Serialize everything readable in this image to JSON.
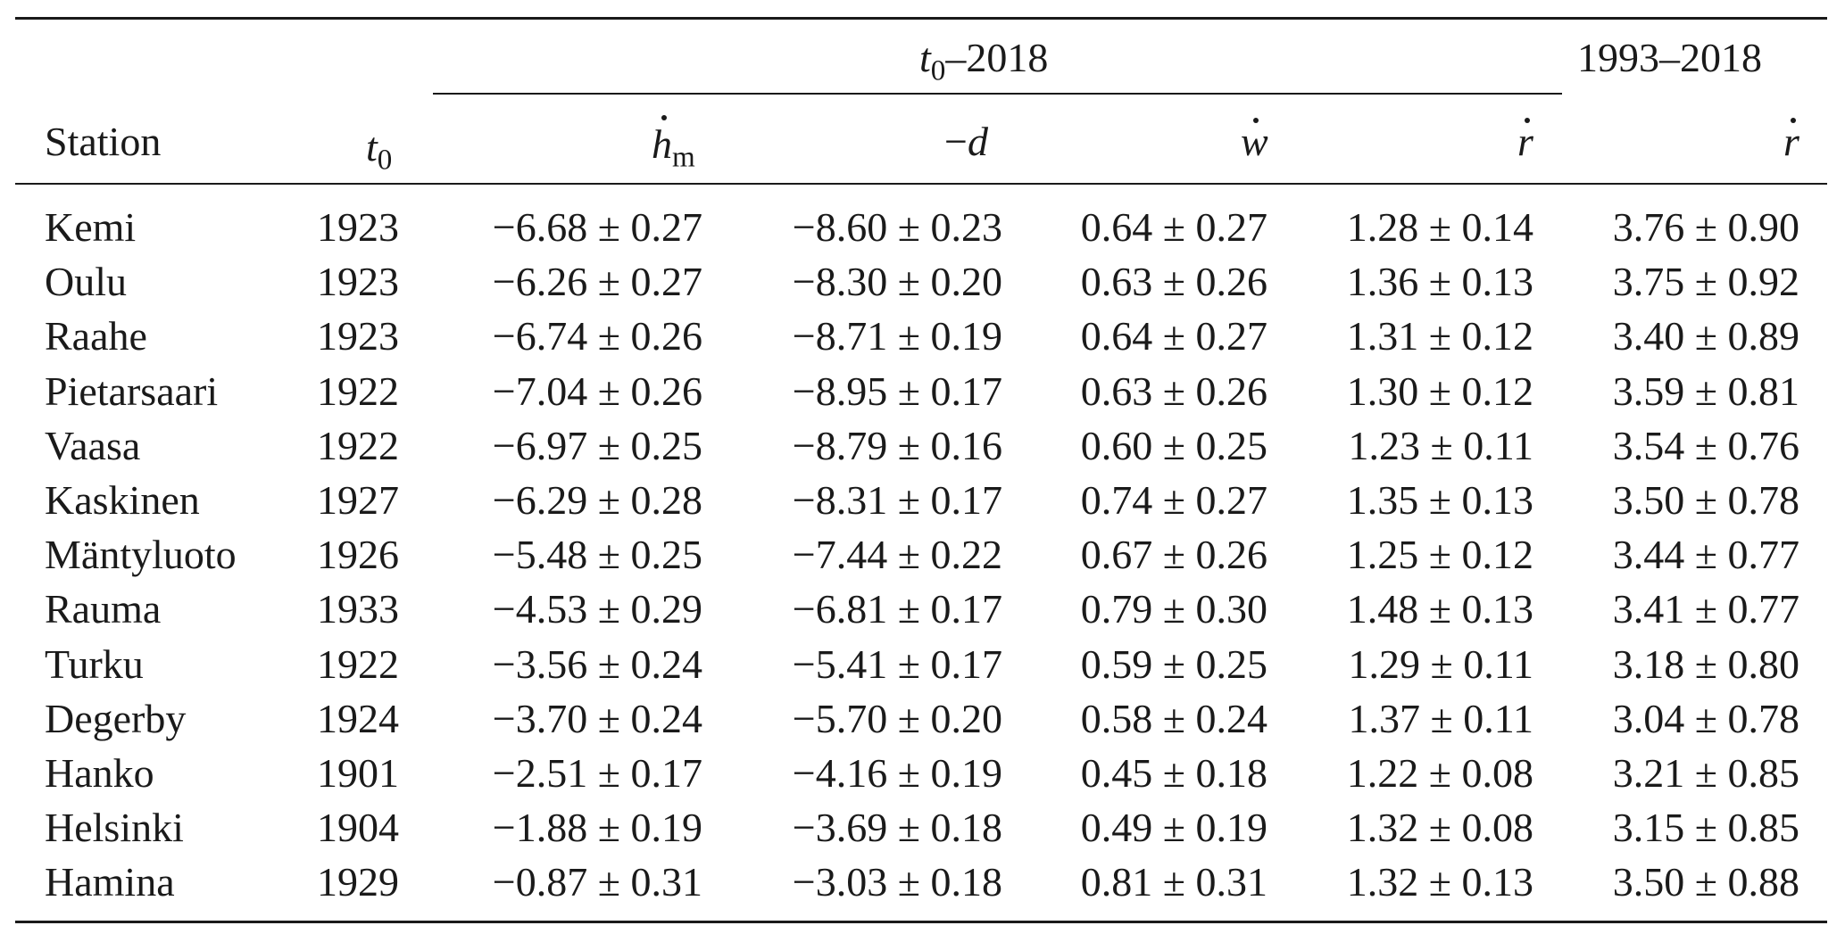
{
  "table": {
    "group_headers": {
      "t0_period": "t0–2018",
      "t0_period_sub_prefix": "t",
      "t0_period_sub": "0",
      "t0_period_suffix": "–2018",
      "recent_period": "1993–2018"
    },
    "column_headers": {
      "station": "Station",
      "t0": "t",
      "t0_sub": "0",
      "hm": "h",
      "hm_sub": "m",
      "d": "−d",
      "d_sign": "−",
      "d_var": "d",
      "w": "w",
      "r": "r",
      "r_recent": "r"
    },
    "rows": [
      {
        "station": "Kemi",
        "t0": "1923",
        "hm": "−6.68 ± 0.27",
        "d": "−8.60 ± 0.23",
        "w": "0.64 ± 0.27",
        "r": "1.28 ± 0.14",
        "r_recent": "3.76 ± 0.90"
      },
      {
        "station": "Oulu",
        "t0": "1923",
        "hm": "−6.26 ± 0.27",
        "d": "−8.30 ± 0.20",
        "w": "0.63 ± 0.26",
        "r": "1.36 ± 0.13",
        "r_recent": "3.75 ± 0.92"
      },
      {
        "station": "Raahe",
        "t0": "1923",
        "hm": "−6.74 ± 0.26",
        "d": "−8.71 ± 0.19",
        "w": "0.64 ± 0.27",
        "r": "1.31 ± 0.12",
        "r_recent": "3.40 ± 0.89"
      },
      {
        "station": "Pietarsaari",
        "t0": "1922",
        "hm": "−7.04 ± 0.26",
        "d": "−8.95 ± 0.17",
        "w": "0.63 ± 0.26",
        "r": "1.30 ± 0.12",
        "r_recent": "3.59 ± 0.81"
      },
      {
        "station": "Vaasa",
        "t0": "1922",
        "hm": "−6.97 ± 0.25",
        "d": "−8.79 ± 0.16",
        "w": "0.60 ± 0.25",
        "r": "1.23 ± 0.11",
        "r_recent": "3.54 ± 0.76"
      },
      {
        "station": "Kaskinen",
        "t0": "1927",
        "hm": "−6.29 ± 0.28",
        "d": "−8.31 ± 0.17",
        "w": "0.74 ± 0.27",
        "r": "1.35 ± 0.13",
        "r_recent": "3.50 ± 0.78"
      },
      {
        "station": "Mäntyluoto",
        "t0": "1926",
        "hm": "−5.48 ± 0.25",
        "d": "−7.44 ± 0.22",
        "w": "0.67 ± 0.26",
        "r": "1.25 ± 0.12",
        "r_recent": "3.44 ± 0.77"
      },
      {
        "station": "Rauma",
        "t0": "1933",
        "hm": "−4.53 ± 0.29",
        "d": "−6.81 ± 0.17",
        "w": "0.79 ± 0.30",
        "r": "1.48 ± 0.13",
        "r_recent": "3.41 ± 0.77"
      },
      {
        "station": "Turku",
        "t0": "1922",
        "hm": "−3.56 ± 0.24",
        "d": "−5.41 ± 0.17",
        "w": "0.59 ± 0.25",
        "r": "1.29 ± 0.11",
        "r_recent": "3.18 ± 0.80"
      },
      {
        "station": "Degerby",
        "t0": "1924",
        "hm": "−3.70 ± 0.24",
        "d": "−5.70 ± 0.20",
        "w": "0.58 ± 0.24",
        "r": "1.37 ± 0.11",
        "r_recent": "3.04 ± 0.78"
      },
      {
        "station": "Hanko",
        "t0": "1901",
        "hm": "−2.51 ± 0.17",
        "d": "−4.16 ± 0.19",
        "w": "0.45 ± 0.18",
        "r": "1.22 ± 0.08",
        "r_recent": "3.21 ± 0.85"
      },
      {
        "station": "Helsinki",
        "t0": "1904",
        "hm": "−1.88 ± 0.19",
        "d": "−3.69 ± 0.18",
        "w": "0.49 ± 0.19",
        "r": "1.32 ± 0.08",
        "r_recent": "3.15 ± 0.85"
      },
      {
        "station": "Hamina",
        "t0": "1929",
        "hm": "−0.87 ± 0.31",
        "d": "−3.03 ± 0.18",
        "w": "0.81 ± 0.31",
        "r": "1.32 ± 0.13",
        "r_recent": "3.50 ± 0.88"
      }
    ]
  }
}
